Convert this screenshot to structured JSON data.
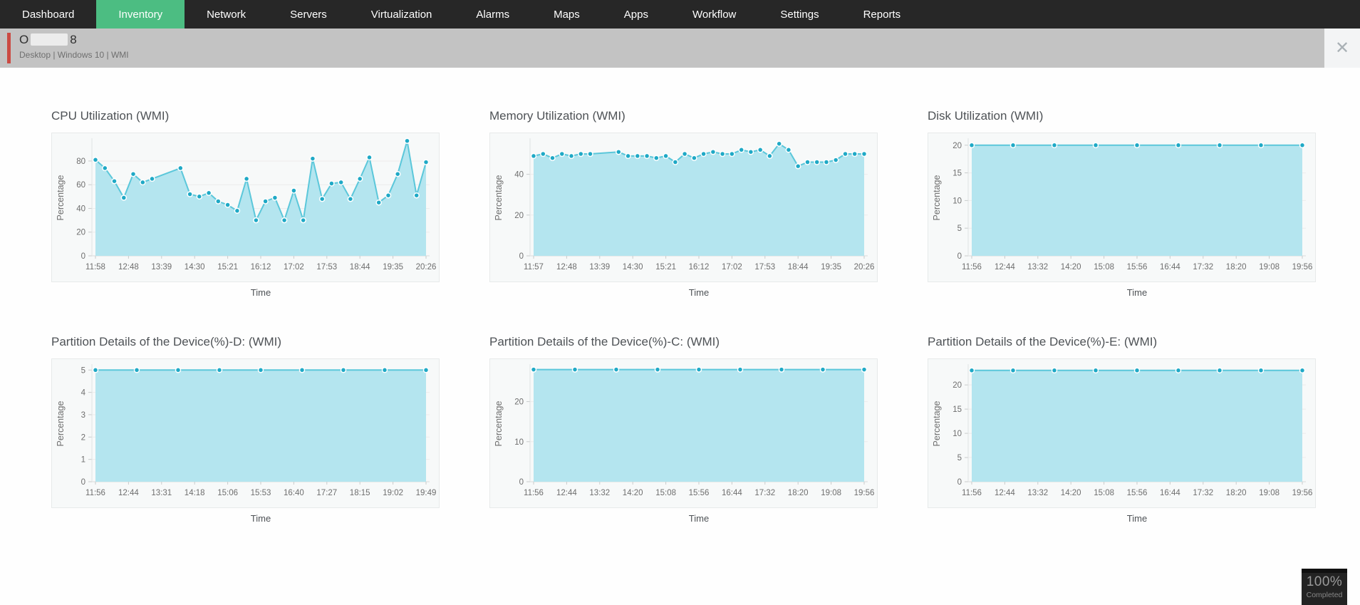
{
  "nav": {
    "items": [
      {
        "label": "Dashboard"
      },
      {
        "label": "Inventory",
        "active": true
      },
      {
        "label": "Network"
      },
      {
        "label": "Servers"
      },
      {
        "label": "Virtualization"
      },
      {
        "label": "Alarms"
      },
      {
        "label": "Maps"
      },
      {
        "label": "Apps"
      },
      {
        "label": "Workflow"
      },
      {
        "label": "Settings"
      },
      {
        "label": "Reports"
      }
    ]
  },
  "header": {
    "device_name_prefix": "O",
    "device_name_suffix": "8",
    "subtitle": "Desktop | Windows 10 | WMI",
    "close_icon": "✕"
  },
  "badge": {
    "percent": "100%",
    "label": "Completed"
  },
  "theme": {
    "nav_bg": "#272727",
    "active_tab_green": "#4cbd82",
    "header_gray": "#c3c3c3",
    "accent_red": "#cb4a43",
    "area_fill": "#b4e5ef",
    "line_color": "#5bc7da",
    "dot_color": "#1fa9c6",
    "grid_color": "#ececec",
    "axis_color": "#d9dcdc",
    "tick_text": "#6e6e6e"
  },
  "chart_data": [
    {
      "type": "area",
      "title": "CPU Utilization (WMI)",
      "xlabel": "Time",
      "ylabel": "Percentage",
      "x_tick_labels": [
        "11:58",
        "12:48",
        "13:39",
        "14:30",
        "15:21",
        "16:12",
        "17:02",
        "17:53",
        "18:44",
        "19:35",
        "20:26"
      ],
      "y_ticks": [
        0,
        20,
        40,
        60,
        80
      ],
      "ylim": [
        0,
        98
      ],
      "xspan": 35,
      "x": [
        0,
        1,
        2,
        3,
        4,
        5,
        6,
        9,
        10,
        11,
        12,
        13,
        14,
        15,
        16,
        17,
        18,
        19,
        20,
        21,
        22,
        23,
        24,
        25,
        26,
        27,
        28,
        29,
        30,
        31,
        32,
        33,
        34,
        35
      ],
      "values": [
        81,
        74,
        63,
        49,
        69,
        62,
        65,
        74,
        52,
        50,
        53,
        46,
        43,
        38,
        65,
        30,
        46,
        49,
        30,
        55,
        30,
        82,
        48,
        61,
        62,
        48,
        65,
        83,
        45,
        51,
        69,
        97,
        51,
        79
      ]
    },
    {
      "type": "area",
      "title": "Memory Utilization (WMI)",
      "xlabel": "Time",
      "ylabel": "Percentage",
      "x_tick_labels": [
        "11:57",
        "12:48",
        "13:39",
        "14:30",
        "15:21",
        "16:12",
        "17:02",
        "17:53",
        "18:44",
        "19:35",
        "20:26"
      ],
      "y_ticks": [
        0,
        20,
        40
      ],
      "ylim": [
        0,
        57
      ],
      "xspan": 35,
      "x": [
        0,
        1,
        2,
        3,
        4,
        5,
        6,
        9,
        10,
        11,
        12,
        13,
        14,
        15,
        16,
        17,
        18,
        19,
        20,
        21,
        22,
        23,
        24,
        25,
        26,
        27,
        28,
        29,
        30,
        31,
        32,
        33,
        34,
        35
      ],
      "values": [
        49,
        50,
        48,
        50,
        49,
        50,
        50,
        51,
        49,
        49,
        49,
        48,
        49,
        46,
        50,
        48,
        50,
        51,
        50,
        50,
        52,
        51,
        52,
        49,
        55,
        52,
        44,
        46,
        46,
        46,
        47,
        50,
        50,
        50
      ]
    },
    {
      "type": "area",
      "title": "Disk Utilization (WMI)",
      "xlabel": "Time",
      "ylabel": "Percentage",
      "x_tick_labels": [
        "11:56",
        "12:44",
        "13:32",
        "14:20",
        "15:08",
        "15:56",
        "16:44",
        "17:32",
        "18:20",
        "19:08",
        "19:56"
      ],
      "y_ticks": [
        0,
        5,
        10,
        15,
        20
      ],
      "ylim": [
        0,
        21
      ],
      "xspan": 8,
      "x": [
        0,
        1,
        2,
        3,
        4,
        5,
        6,
        7,
        8
      ],
      "values": [
        20,
        20,
        20,
        20,
        20,
        20,
        20,
        20,
        20
      ]
    },
    {
      "type": "area",
      "title": "Partition Details of the Device(%)-D: (WMI)",
      "xlabel": "Time",
      "ylabel": "Percentage",
      "x_tick_labels": [
        "11:56",
        "12:44",
        "13:31",
        "14:18",
        "15:06",
        "15:53",
        "16:40",
        "17:27",
        "18:15",
        "19:02",
        "19:49"
      ],
      "y_ticks": [
        0,
        1,
        2,
        3,
        4,
        5
      ],
      "ylim": [
        0,
        5.2
      ],
      "xspan": 8,
      "x": [
        0,
        1,
        2,
        3,
        4,
        5,
        6,
        7,
        8
      ],
      "values": [
        5,
        5,
        5,
        5,
        5,
        5,
        5,
        5,
        5
      ]
    },
    {
      "type": "area",
      "title": "Partition Details of the Device(%)-C: (WMI)",
      "xlabel": "Time",
      "ylabel": "Percentage",
      "x_tick_labels": [
        "11:56",
        "12:44",
        "13:32",
        "14:20",
        "15:08",
        "15:56",
        "16:44",
        "17:32",
        "18:20",
        "19:08",
        "19:56"
      ],
      "y_ticks": [
        0,
        10,
        20
      ],
      "ylim": [
        0,
        29
      ],
      "xspan": 8,
      "x": [
        0,
        1,
        2,
        3,
        4,
        5,
        6,
        7,
        8
      ],
      "values": [
        28,
        28,
        28,
        28,
        28,
        28,
        28,
        28,
        28
      ]
    },
    {
      "type": "area",
      "title": "Partition Details of the Device(%)-E: (WMI)",
      "xlabel": "Time",
      "ylabel": "Percentage",
      "x_tick_labels": [
        "11:56",
        "12:44",
        "13:32",
        "14:20",
        "15:08",
        "15:56",
        "16:44",
        "17:32",
        "18:20",
        "19:08",
        "19:56"
      ],
      "y_ticks": [
        0,
        5,
        10,
        15,
        20
      ],
      "ylim": [
        0,
        24
      ],
      "xspan": 8,
      "x": [
        0,
        1,
        2,
        3,
        4,
        5,
        6,
        7,
        8
      ],
      "values": [
        23,
        23,
        23,
        23,
        23,
        23,
        23,
        23,
        23
      ]
    }
  ]
}
